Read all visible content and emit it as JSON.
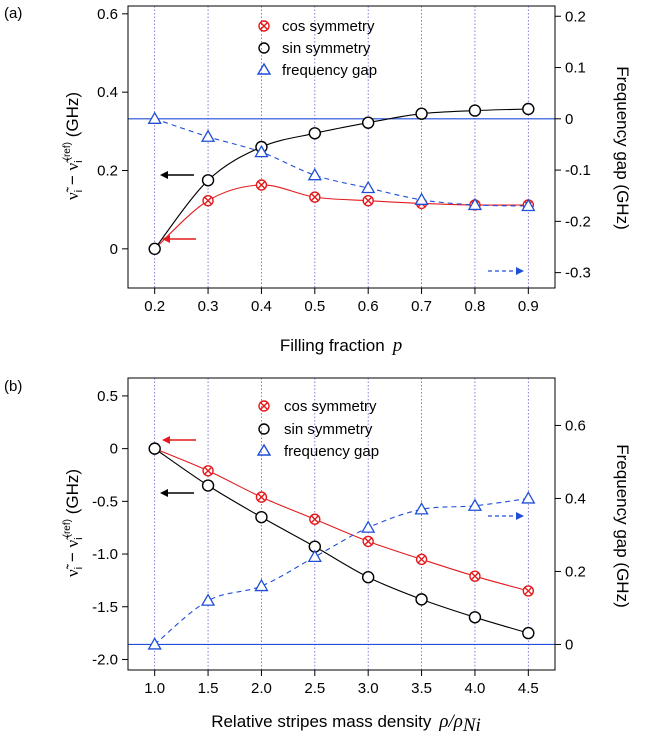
{
  "colors": {
    "cos": "#e41a1c",
    "sin": "#000000",
    "gap": "#1f4fd8",
    "grid": "#6a5acd",
    "zero": "#1f4fd8"
  },
  "chart_data": [
    {
      "panel_label": "(a)",
      "type": "scatter",
      "xlabel": "Filling fraction",
      "xlabel_symbol": "p",
      "ylabel_left": "ν̃ᵢ − ν̃ᵢ⁽ʳᵉᶠ⁾ (GHz)",
      "ylabel_right": "Frequency gap  (GHz)",
      "xlim": [
        0.15,
        0.95
      ],
      "ylim_left": [
        -0.1,
        0.62
      ],
      "ylim_right": [
        -0.33,
        0.22
      ],
      "xticks": [
        "0.2",
        "0.3",
        "0.4",
        "0.5",
        "0.6",
        "0.7",
        "0.8",
        "0.9"
      ],
      "yticks_left": [
        "0",
        "0.2",
        "0.4",
        "0.6"
      ],
      "yticks_right": [
        "-0.3",
        "-0.2",
        "-0.1",
        "0",
        "0.1",
        "0.2"
      ],
      "legend": [
        "cos symmetry",
        "sin  symmetry",
        "frequency gap"
      ],
      "legend_position": "top-center",
      "grid": "vertical dotted at x ticks",
      "series": [
        {
          "name": "cos symmetry",
          "axis": "left",
          "marker": "circle-x",
          "x": [
            0.2,
            0.3,
            0.4,
            0.5,
            0.6,
            0.7,
            0.8,
            0.9
          ],
          "y": [
            0.0,
            0.123,
            0.163,
            0.132,
            0.123,
            0.116,
            0.112,
            0.112
          ]
        },
        {
          "name": "sin  symmetry",
          "axis": "left",
          "marker": "circle",
          "x": [
            0.2,
            0.3,
            0.4,
            0.5,
            0.6,
            0.7,
            0.8,
            0.9
          ],
          "y": [
            0.0,
            0.175,
            0.26,
            0.295,
            0.322,
            0.345,
            0.353,
            0.357
          ]
        },
        {
          "name": "frequency gap",
          "axis": "right",
          "marker": "triangle",
          "x": [
            0.2,
            0.3,
            0.4,
            0.5,
            0.6,
            0.7,
            0.8,
            0.9
          ],
          "y": [
            0.0,
            -0.035,
            -0.065,
            -0.11,
            -0.135,
            -0.158,
            -0.168,
            -0.17
          ]
        }
      ]
    },
    {
      "panel_label": "(b)",
      "type": "scatter",
      "xlabel": "Relative stripes mass density",
      "xlabel_symbol": "ρ/ρ",
      "xlabel_subscript": "Ni",
      "ylabel_left": "ν̃ᵢ − ν̃ᵢ⁽ʳᵉᶠ⁾ (GHz)",
      "ylabel_right": "Frequency gap  (GHz)",
      "xlim": [
        0.75,
        4.75
      ],
      "ylim_left": [
        -2.1,
        0.67
      ],
      "ylim_right": [
        -0.07,
        0.73
      ],
      "xticks": [
        "1.0",
        "1.5",
        "2.0",
        "2.5",
        "3.0",
        "3.5",
        "4.0",
        "4.5"
      ],
      "yticks_left": [
        "-2.0",
        "-1.5",
        "-1.0",
        "-0.5",
        "0",
        "0.5"
      ],
      "yticks_right": [
        "0",
        "0.2",
        "0.4",
        "0.6"
      ],
      "legend": [
        "cos symmetry",
        "sin  symmetry",
        "frequency gap"
      ],
      "legend_position": "top-center",
      "grid": "vertical dotted at x ticks",
      "series": [
        {
          "name": "cos symmetry",
          "axis": "left",
          "marker": "circle-x",
          "x": [
            1.0,
            1.5,
            2.0,
            2.5,
            3.0,
            3.5,
            4.0,
            4.5
          ],
          "y": [
            0.0,
            -0.21,
            -0.46,
            -0.67,
            -0.88,
            -1.05,
            -1.21,
            -1.35
          ]
        },
        {
          "name": "sin  symmetry",
          "axis": "left",
          "marker": "circle",
          "x": [
            1.0,
            1.5,
            2.0,
            2.5,
            3.0,
            3.5,
            4.0,
            4.5
          ],
          "y": [
            0.0,
            -0.35,
            -0.65,
            -0.93,
            -1.22,
            -1.43,
            -1.6,
            -1.75
          ]
        },
        {
          "name": "frequency gap",
          "axis": "right",
          "marker": "triangle",
          "x": [
            1.0,
            1.5,
            2.0,
            2.5,
            3.0,
            3.5,
            4.0,
            4.5
          ],
          "y": [
            0.0,
            0.12,
            0.16,
            0.24,
            0.32,
            0.37,
            0.38,
            0.4
          ]
        }
      ]
    }
  ]
}
